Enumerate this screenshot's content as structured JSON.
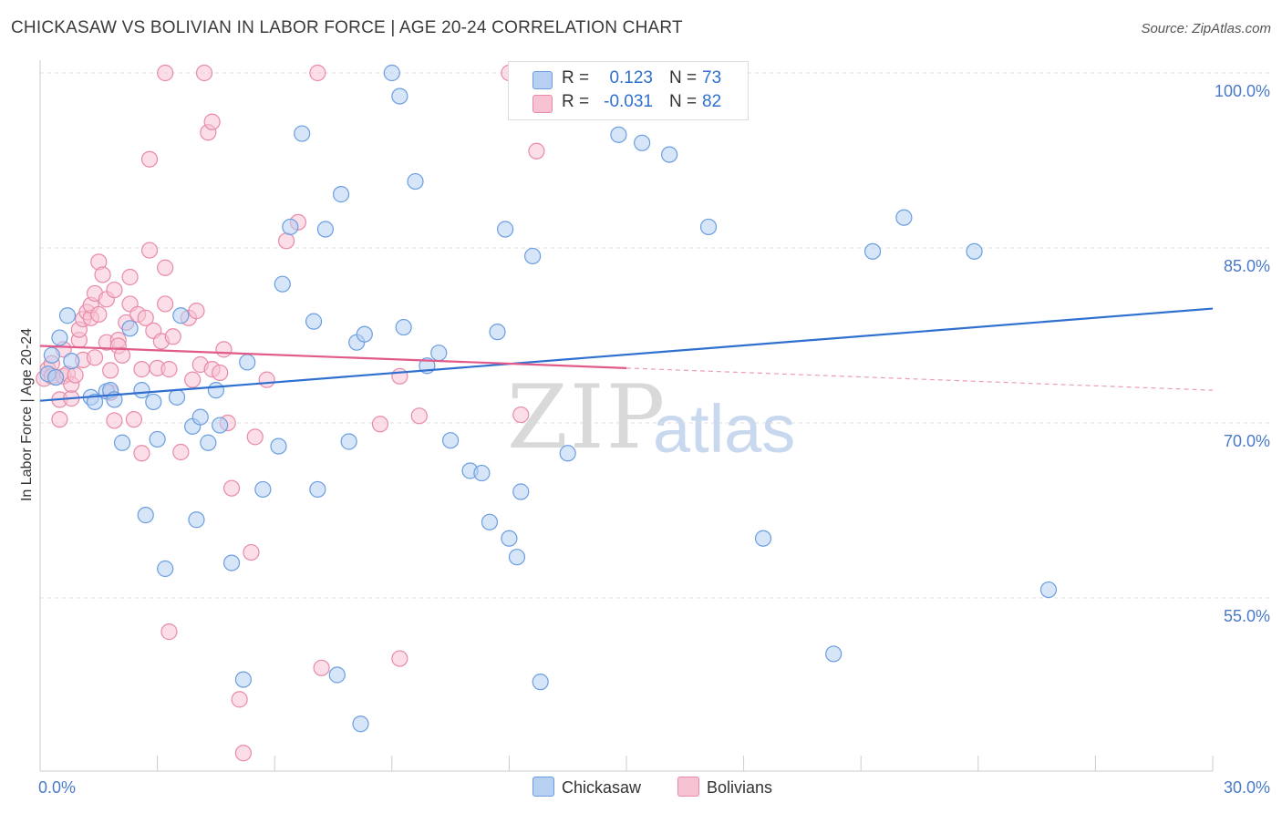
{
  "header": {
    "title": "CHICKASAW VS BOLIVIAN IN LABOR FORCE | AGE 20-24 CORRELATION CHART",
    "source": "Source: ZipAtlas.com"
  },
  "watermark": {
    "zip": "ZIP",
    "atlas": "atlas"
  },
  "stats": {
    "rows": [
      {
        "r_label": "R =",
        "r_value": "0.123",
        "n_label": "N =",
        "n_value": "73"
      },
      {
        "r_label": "R =",
        "r_value": "-0.031",
        "n_label": "N =",
        "n_value": "82"
      }
    ]
  },
  "legend": {
    "items": [
      {
        "label": "Chickasaw"
      },
      {
        "label": "Bolivians"
      }
    ]
  },
  "colors": {
    "chickasaw_fill": "#b7d0f2",
    "chickasaw_stroke": "#6a9ee0",
    "chickasaw_line": "#2f6fd0",
    "bolivians_fill": "#f7c3d3",
    "bolivians_stroke": "#e88aa8",
    "bolivians_line": "#e05a8a",
    "grid": "#dddddd",
    "axis": "#cccccc",
    "tick_text": "#4a7ac8"
  },
  "chart_data": {
    "type": "scatter",
    "title": "CHICKASAW VS BOLIVIAN IN LABOR FORCE | AGE 20-24 CORRELATION CHART",
    "xlabel": "",
    "ylabel": "In Labor Force | Age 20-24",
    "xlim": [
      0,
      30
    ],
    "ylim": [
      41.5,
      102
    ],
    "x_ticks": [
      0,
      3,
      6,
      9,
      12,
      15,
      18,
      21,
      24,
      27,
      30
    ],
    "x_tick_labels": [
      "0.0%",
      "",
      "",
      "",
      "",
      "",
      "",
      "",
      "",
      "",
      "30.0%"
    ],
    "y_gridlines": [
      55,
      70,
      85,
      100
    ],
    "y_tick_labels": [
      "55.0%",
      "70.0%",
      "85.0%",
      "100.0%"
    ],
    "grid": true,
    "legend_position": "bottom-center",
    "series": [
      {
        "name": "Chickasaw",
        "R": 0.123,
        "N": 73,
        "trend": {
          "x": [
            0,
            30
          ],
          "y": [
            71.9,
            79.8
          ]
        },
        "points": [
          [
            0.3,
            75.8
          ],
          [
            0.5,
            77.3
          ],
          [
            0.7,
            79.2
          ],
          [
            0.8,
            75.3
          ],
          [
            1.3,
            72.2
          ],
          [
            1.4,
            71.8
          ],
          [
            1.7,
            72.7
          ],
          [
            1.8,
            72.8
          ],
          [
            1.9,
            72.0
          ],
          [
            2.1,
            68.3
          ],
          [
            2.3,
            78.1
          ],
          [
            2.6,
            72.8
          ],
          [
            2.7,
            62.1
          ],
          [
            2.9,
            71.8
          ],
          [
            3.0,
            68.6
          ],
          [
            3.2,
            57.5
          ],
          [
            3.5,
            72.2
          ],
          [
            3.6,
            79.2
          ],
          [
            3.9,
            69.7
          ],
          [
            4.0,
            61.7
          ],
          [
            4.1,
            70.5
          ],
          [
            4.3,
            68.3
          ],
          [
            4.5,
            72.8
          ],
          [
            4.6,
            69.8
          ],
          [
            4.9,
            58.0
          ],
          [
            5.2,
            48.0
          ],
          [
            5.3,
            75.2
          ],
          [
            5.7,
            64.3
          ],
          [
            6.1,
            68.0
          ],
          [
            6.2,
            81.9
          ],
          [
            6.4,
            86.8
          ],
          [
            6.7,
            94.8
          ],
          [
            7.0,
            78.7
          ],
          [
            7.1,
            64.3
          ],
          [
            7.3,
            86.6
          ],
          [
            7.6,
            48.4
          ],
          [
            7.7,
            89.6
          ],
          [
            7.9,
            68.4
          ],
          [
            8.1,
            76.9
          ],
          [
            8.2,
            44.2
          ],
          [
            8.3,
            77.6
          ],
          [
            9.0,
            100.0
          ],
          [
            9.2,
            98.0
          ],
          [
            9.3,
            78.2
          ],
          [
            9.6,
            90.7
          ],
          [
            9.9,
            74.9
          ],
          [
            10.2,
            76.0
          ],
          [
            10.5,
            68.5
          ],
          [
            11.0,
            65.9
          ],
          [
            11.3,
            65.7
          ],
          [
            11.5,
            61.5
          ],
          [
            11.7,
            77.8
          ],
          [
            11.9,
            86.6
          ],
          [
            12.0,
            60.1
          ],
          [
            12.2,
            58.5
          ],
          [
            12.3,
            64.1
          ],
          [
            12.6,
            84.3
          ],
          [
            12.8,
            47.8
          ],
          [
            13.3,
            100.0
          ],
          [
            13.5,
            67.4
          ],
          [
            14.8,
            94.7
          ],
          [
            15.4,
            94.0
          ],
          [
            16.1,
            93.0
          ],
          [
            17.0,
            100.0
          ],
          [
            17.1,
            86.8
          ],
          [
            18.5,
            60.1
          ],
          [
            20.3,
            50.2
          ],
          [
            21.3,
            84.7
          ],
          [
            22.1,
            87.6
          ],
          [
            23.9,
            84.7
          ],
          [
            25.8,
            55.7
          ],
          [
            0.2,
            74.2
          ],
          [
            0.4,
            73.9
          ]
        ]
      },
      {
        "name": "Bolivians",
        "R": -0.031,
        "N": 82,
        "trend": {
          "x": [
            0,
            15
          ],
          "y": [
            76.6,
            74.7
          ]
        },
        "trend_extension": {
          "x": [
            15,
            30
          ],
          "y": [
            74.7,
            72.8
          ]
        },
        "points": [
          [
            0.1,
            73.8
          ],
          [
            0.2,
            74.6
          ],
          [
            0.3,
            75.1
          ],
          [
            0.3,
            74.0
          ],
          [
            0.4,
            73.9
          ],
          [
            0.5,
            72.0
          ],
          [
            0.5,
            70.3
          ],
          [
            0.6,
            74.0
          ],
          [
            0.6,
            76.3
          ],
          [
            0.7,
            74.2
          ],
          [
            0.8,
            72.1
          ],
          [
            0.8,
            73.3
          ],
          [
            0.9,
            74.1
          ],
          [
            1.0,
            77.1
          ],
          [
            1.0,
            78.0
          ],
          [
            1.1,
            78.9
          ],
          [
            1.1,
            75.4
          ],
          [
            1.2,
            79.5
          ],
          [
            1.3,
            79.0
          ],
          [
            1.3,
            80.1
          ],
          [
            1.4,
            75.6
          ],
          [
            1.4,
            81.1
          ],
          [
            1.5,
            83.8
          ],
          [
            1.5,
            79.3
          ],
          [
            1.6,
            82.7
          ],
          [
            1.7,
            80.6
          ],
          [
            1.7,
            76.9
          ],
          [
            1.8,
            74.5
          ],
          [
            1.8,
            72.6
          ],
          [
            1.9,
            81.4
          ],
          [
            1.9,
            70.2
          ],
          [
            2.0,
            77.1
          ],
          [
            2.0,
            76.6
          ],
          [
            2.1,
            75.8
          ],
          [
            2.2,
            78.6
          ],
          [
            2.3,
            82.5
          ],
          [
            2.3,
            80.2
          ],
          [
            2.4,
            70.3
          ],
          [
            2.5,
            79.3
          ],
          [
            2.6,
            67.4
          ],
          [
            2.6,
            74.6
          ],
          [
            2.7,
            79.0
          ],
          [
            2.8,
            92.6
          ],
          [
            2.8,
            84.8
          ],
          [
            2.9,
            77.9
          ],
          [
            3.0,
            74.7
          ],
          [
            3.1,
            77.0
          ],
          [
            3.2,
            80.2
          ],
          [
            3.2,
            83.3
          ],
          [
            3.3,
            52.1
          ],
          [
            3.3,
            74.6
          ],
          [
            3.4,
            77.4
          ],
          [
            3.6,
            67.5
          ],
          [
            3.8,
            79.0
          ],
          [
            3.9,
            73.7
          ],
          [
            4.0,
            79.6
          ],
          [
            4.1,
            75.0
          ],
          [
            4.3,
            94.9
          ],
          [
            4.4,
            74.6
          ],
          [
            4.4,
            95.8
          ],
          [
            4.6,
            74.3
          ],
          [
            4.7,
            76.3
          ],
          [
            4.8,
            70.0
          ],
          [
            4.9,
            64.4
          ],
          [
            5.1,
            46.3
          ],
          [
            5.2,
            41.7
          ],
          [
            5.4,
            58.9
          ],
          [
            5.5,
            68.8
          ],
          [
            5.8,
            73.7
          ],
          [
            6.3,
            85.6
          ],
          [
            6.6,
            87.2
          ],
          [
            7.1,
            100.0
          ],
          [
            7.2,
            49.0
          ],
          [
            8.7,
            69.9
          ],
          [
            9.2,
            49.8
          ],
          [
            9.2,
            74.0
          ],
          [
            9.7,
            70.6
          ],
          [
            12.0,
            100.0
          ],
          [
            12.3,
            70.7
          ],
          [
            12.7,
            93.3
          ],
          [
            3.2,
            100.0
          ],
          [
            4.2,
            100.0
          ]
        ]
      }
    ]
  }
}
